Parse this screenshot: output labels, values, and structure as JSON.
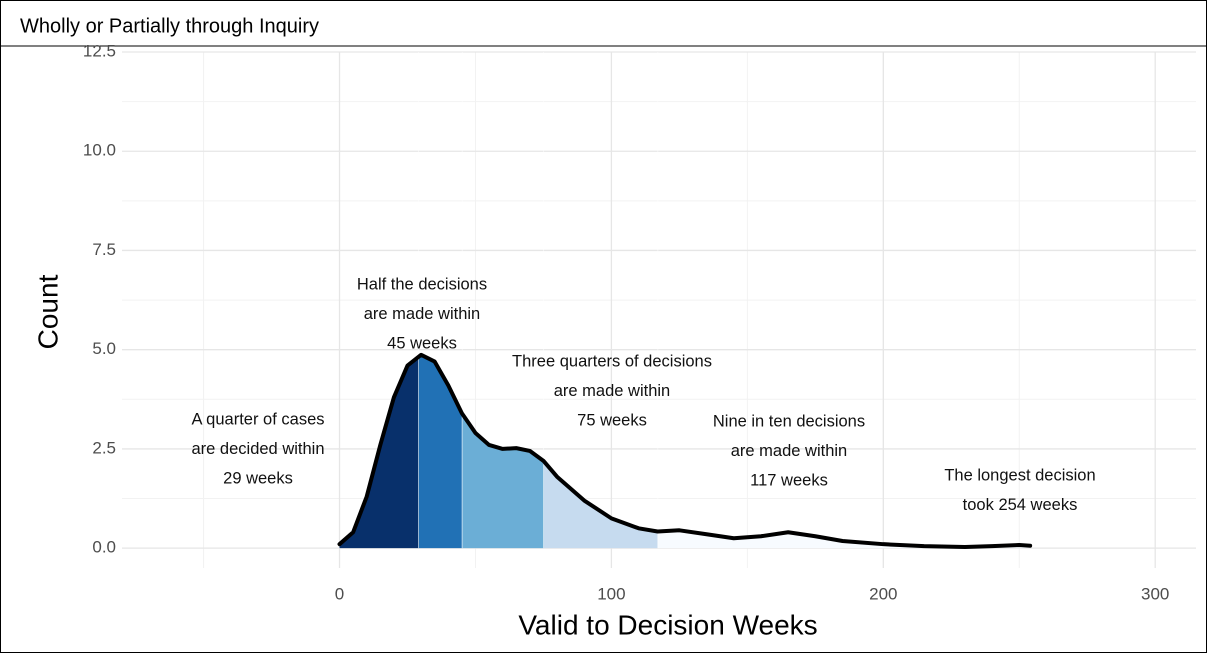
{
  "chart_data": {
    "type": "density",
    "title": "Wholly or Partially through Inquiry",
    "x_label": "Valid to Decision Weeks",
    "y_label": "Count",
    "x": [
      0,
      5,
      10,
      15,
      20,
      25,
      30,
      35,
      40,
      45,
      50,
      55,
      60,
      65,
      70,
      75,
      80,
      90,
      100,
      110,
      117,
      125,
      135,
      145,
      155,
      165,
      175,
      185,
      200,
      215,
      230,
      240,
      250,
      254
    ],
    "values": [
      0.1,
      0.4,
      1.3,
      2.6,
      3.8,
      4.6,
      4.87,
      4.7,
      4.1,
      3.4,
      2.9,
      2.6,
      2.5,
      2.52,
      2.45,
      2.2,
      1.8,
      1.2,
      0.75,
      0.5,
      0.42,
      0.45,
      0.35,
      0.25,
      0.3,
      0.4,
      0.3,
      0.18,
      0.1,
      0.05,
      0.03,
      0.05,
      0.08,
      0.06
    ],
    "line_color": "#000000",
    "bands": [
      {
        "from": 0,
        "to": 29,
        "color": "#08306b"
      },
      {
        "from": 29,
        "to": 45,
        "color": "#2171b5"
      },
      {
        "from": 45,
        "to": 75,
        "color": "#6baed6"
      },
      {
        "from": 75,
        "to": 117,
        "color": "#c6dbef"
      },
      {
        "from": 117,
        "to": 254,
        "color": "#f7fbff"
      }
    ],
    "annotations": [
      [
        "A quarter of cases",
        "are decided within",
        "29 weeks"
      ],
      [
        "Half the decisions",
        "are made within",
        "45 weeks"
      ],
      [
        "Three quarters of decisions",
        "are made within",
        "75 weeks"
      ],
      [
        "Nine in ten decisions",
        "are made within",
        "117 weeks"
      ],
      [
        "The longest decision",
        "took 254 weeks"
      ]
    ],
    "xlim": [
      -80,
      315
    ],
    "ylim": [
      -0.5,
      12.5
    ],
    "xticks": [
      0,
      100,
      200,
      300
    ],
    "yticks": [
      {
        "value": 0,
        "label": "0.0"
      },
      2.5,
      {
        "value": 5,
        "label": "5.0"
      },
      7.5,
      {
        "value": 10,
        "label": "10.0"
      },
      12.5
    ],
    "minor_xticks": [
      -50,
      50,
      150,
      250
    ],
    "minor_yticks": [
      1.25,
      3.75,
      6.25,
      8.75,
      11.25
    ],
    "grid": true
  }
}
